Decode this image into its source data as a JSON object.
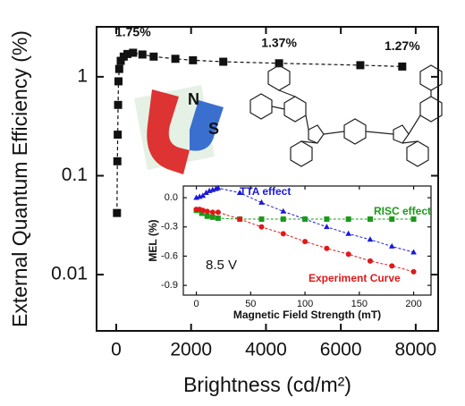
{
  "chart_data": [
    {
      "type": "line",
      "y_label": "External Quantum Efficiency (%)",
      "x_label": "Brightness (cd/m²)",
      "log_y": true,
      "x": [
        20,
        30,
        40,
        50,
        60,
        80,
        120,
        200,
        300,
        450,
        700,
        1000,
        1580,
        2050,
        2860,
        4350,
        6520,
        7640
      ],
      "series": [
        {
          "color": "#111111",
          "marker": "square",
          "values": [
            0.042,
            0.14,
            0.26,
            0.52,
            0.9,
            1.2,
            1.45,
            1.6,
            1.7,
            1.75,
            1.68,
            1.6,
            1.52,
            1.47,
            1.42,
            1.37,
            1.31,
            1.27
          ],
          "value_labels": [
            null,
            null,
            null,
            null,
            null,
            null,
            null,
            null,
            null,
            "1.75%",
            null,
            null,
            null,
            null,
            null,
            "1.37%",
            null,
            "1.27%"
          ]
        }
      ],
      "xlim": [
        -525,
        8600
      ],
      "xticks": [
        0,
        2000,
        4000,
        6000,
        8000
      ],
      "ylim": [
        0.0027,
        3.2
      ],
      "yticks": [
        0.01,
        0.1,
        1
      ]
    },
    {
      "type": "line",
      "y_label": "MEL (%)",
      "x_label": "Magnetic Field Strength (mT)",
      "annotation": "8.5 V",
      "series": [
        {
          "name": "TTA effect",
          "color": "#1a1ad6",
          "marker": "triangle",
          "x": [
            0,
            3,
            6,
            9,
            12,
            15,
            18,
            20,
            40,
            60,
            80,
            100,
            120,
            140,
            160,
            180,
            200
          ],
          "values": [
            0,
            0.01,
            0.02,
            0.05,
            0.07,
            0.08,
            0.09,
            0.1,
            0.05,
            -0.05,
            -0.14,
            -0.22,
            -0.3,
            -0.37,
            -0.43,
            -0.5,
            -0.56
          ]
        },
        {
          "name": "RISC effect",
          "color": "#1a9a1a",
          "marker": "square",
          "x": [
            0,
            5,
            10,
            15,
            20,
            40,
            60,
            80,
            100,
            120,
            140,
            160,
            180,
            200
          ],
          "values": [
            -0.13,
            -0.16,
            -0.19,
            -0.2,
            -0.21,
            -0.22,
            -0.22,
            -0.22,
            -0.22,
            -0.22,
            -0.22,
            -0.22,
            -0.22,
            -0.22
          ]
        },
        {
          "name": "Experiment Curve",
          "color": "#e01818",
          "marker": "circle",
          "x": [
            0,
            3,
            6,
            10,
            15,
            20,
            40,
            60,
            80,
            100,
            120,
            140,
            160,
            180,
            200
          ],
          "values": [
            -0.12,
            -0.12,
            -0.13,
            -0.14,
            -0.15,
            -0.15,
            -0.22,
            -0.3,
            -0.37,
            -0.45,
            -0.52,
            -0.58,
            -0.65,
            -0.7,
            -0.76
          ]
        }
      ],
      "xlim": [
        -12,
        216
      ],
      "xticks": [
        0,
        50,
        100,
        150,
        200
      ],
      "ylim": [
        -1.0,
        0.12
      ],
      "yticks": [
        {
          "value": 0,
          "label": "0.0"
        },
        -0.3,
        -0.6,
        -0.9
      ]
    }
  ],
  "illustration": {
    "magnet_poles": [
      "N",
      "S"
    ]
  }
}
